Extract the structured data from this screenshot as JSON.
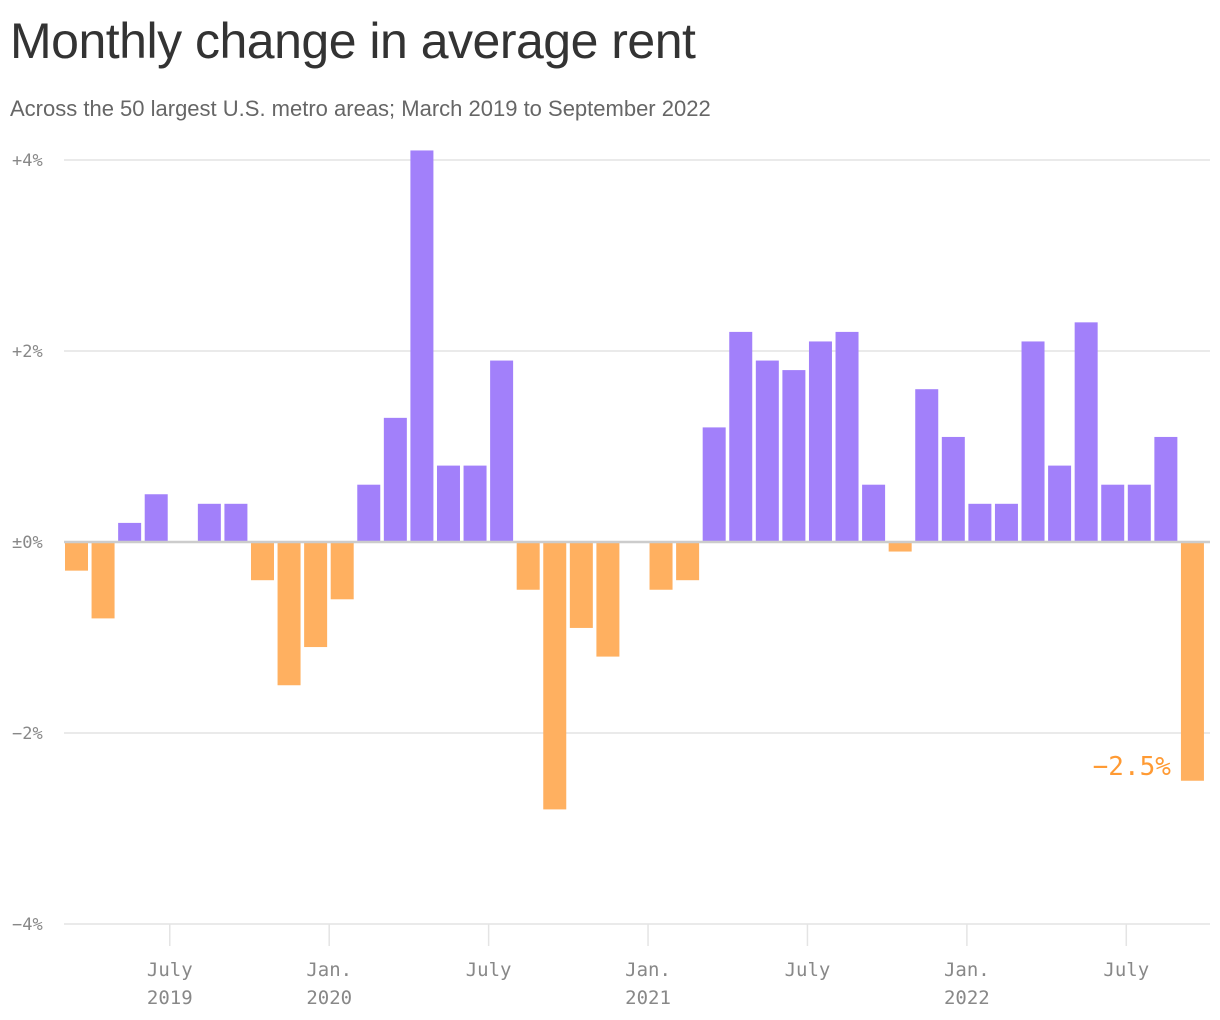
{
  "chart_data": {
    "type": "bar",
    "title": "Monthly change in average rent",
    "subtitle": "Across the 50 largest U.S. metro areas; March 2019 to September 2022",
    "x_range": [
      "2019-03",
      "2022-09"
    ],
    "values": [
      -0.3,
      -0.8,
      0.2,
      0.5,
      0,
      0.4,
      0.4,
      -0.4,
      -1.5,
      -1.1,
      -0.6,
      0.6,
      1.3,
      4.1,
      0.8,
      0.8,
      1.9,
      -0.5,
      -2.8,
      -0.9,
      -1.2,
      0,
      -0.5,
      -0.4,
      1.2,
      2.2,
      1.9,
      1.8,
      2.1,
      2.2,
      0.6,
      -0.1,
      1.6,
      1.1,
      0.4,
      0.4,
      2.1,
      0.8,
      2.3,
      0.6,
      0.6,
      1.1,
      -2.5
    ],
    "ylim": [
      -4,
      4
    ],
    "yticks": [
      {
        "value": 4,
        "label": "+4%"
      },
      {
        "value": 2,
        "label": "+2%"
      },
      {
        "value": 0,
        "label": "±0%"
      },
      {
        "value": -2,
        "label": "−2%"
      },
      {
        "value": -4,
        "label": "−4%"
      }
    ],
    "xticks": [
      {
        "index": 4,
        "line1": "July",
        "line2": "2019"
      },
      {
        "index": 10,
        "line1": "Jan.",
        "line2": "2020"
      },
      {
        "index": 16,
        "line1": "July",
        "line2": ""
      },
      {
        "index": 22,
        "line1": "Jan.",
        "line2": "2021"
      },
      {
        "index": 28,
        "line1": "July",
        "line2": ""
      },
      {
        "index": 34,
        "line1": "Jan.",
        "line2": "2022"
      },
      {
        "index": 40,
        "line1": "July",
        "line2": ""
      }
    ],
    "annotation": {
      "text": "−2.5%",
      "index": 42
    },
    "colors": {
      "positive": "#a280fa",
      "negative": "#ffb060",
      "annotation": "#ff9a33",
      "grid": "#e4e4e4",
      "zero": "#cccccc"
    },
    "grid": true
  }
}
